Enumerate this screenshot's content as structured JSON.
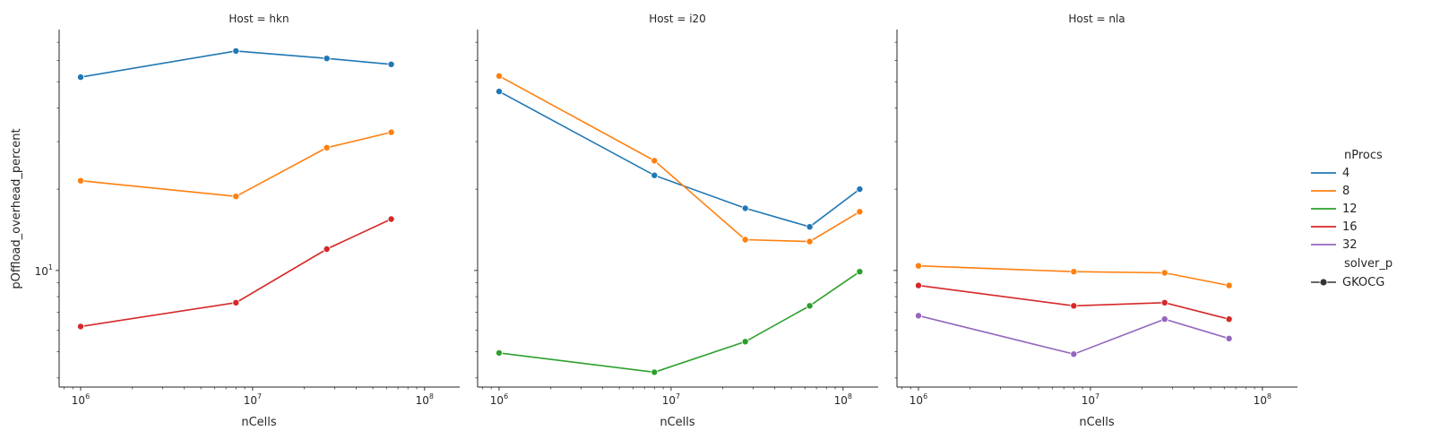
{
  "figure": {
    "ylabel": "pOffload_overhead_percent",
    "legend": {
      "title": "nProcs",
      "entries": [
        {
          "label": "4",
          "color": "#1f77b4"
        },
        {
          "label": "8",
          "color": "#ff7f0e"
        },
        {
          "label": "12",
          "color": "#2ca02c"
        },
        {
          "label": "16",
          "color": "#d62728"
        },
        {
          "label": "32",
          "color": "#9467bd"
        }
      ],
      "style_title": "solver_p",
      "style_entry": "GKOCG"
    }
  },
  "chart_data": [
    {
      "type": "line",
      "title": "Host = hkn",
      "xlabel": "nCells",
      "xscale": "log",
      "yscale": "log",
      "xlim": [
        750000,
        160000000
      ],
      "ylim": [
        3.7,
        78
      ],
      "xticks": [
        {
          "v": 1000000,
          "b": "10",
          "e": "6"
        },
        {
          "v": 10000000,
          "b": "10",
          "e": "7"
        },
        {
          "v": 100000000,
          "b": "10",
          "e": "8"
        }
      ],
      "yticks": [
        {
          "v": 10,
          "b": "10",
          "e": "1"
        }
      ],
      "series": [
        {
          "name": "4",
          "color": "#1f77b4",
          "x": [
            1000000,
            8000000,
            27000000,
            64000000
          ],
          "y": [
            52.0,
            65.0,
            61.0,
            58.0
          ]
        },
        {
          "name": "8",
          "color": "#ff7f0e",
          "x": [
            1000000,
            8000000,
            27000000,
            64000000
          ],
          "y": [
            21.5,
            18.8,
            28.5,
            32.5
          ]
        },
        {
          "name": "16",
          "color": "#d62728",
          "x": [
            1000000,
            8000000,
            27000000,
            64000000
          ],
          "y": [
            6.2,
            7.6,
            12.0,
            15.5
          ]
        }
      ]
    },
    {
      "type": "line",
      "title": "Host = i20",
      "xlabel": "nCells",
      "xscale": "log",
      "yscale": "log",
      "xlim": [
        750000,
        160000000
      ],
      "ylim": [
        3.7,
        78
      ],
      "xticks": [
        {
          "v": 1000000,
          "b": "10",
          "e": "6"
        },
        {
          "v": 10000000,
          "b": "10",
          "e": "7"
        },
        {
          "v": 100000000,
          "b": "10",
          "e": "8"
        }
      ],
      "yticks": [
        {
          "v": 10,
          "b": "10",
          "e": "1"
        }
      ],
      "series": [
        {
          "name": "4",
          "color": "#1f77b4",
          "x": [
            1000000,
            8000000,
            27000000,
            64000000,
            125000000
          ],
          "y": [
            46.0,
            22.5,
            17.0,
            14.5,
            20.0
          ]
        },
        {
          "name": "8",
          "color": "#ff7f0e",
          "x": [
            1000000,
            8000000,
            27000000,
            64000000,
            125000000
          ],
          "y": [
            52.5,
            25.5,
            13.0,
            12.8,
            16.5
          ]
        },
        {
          "name": "12",
          "color": "#2ca02c",
          "x": [
            1000000,
            8000000,
            27000000,
            64000000,
            125000000
          ],
          "y": [
            4.95,
            4.2,
            5.45,
            7.4,
            9.9
          ]
        }
      ]
    },
    {
      "type": "line",
      "title": "Host = nla",
      "xlabel": "nCells",
      "xscale": "log",
      "yscale": "log",
      "xlim": [
        750000,
        160000000
      ],
      "ylim": [
        3.7,
        78
      ],
      "xticks": [
        {
          "v": 1000000,
          "b": "10",
          "e": "6"
        },
        {
          "v": 10000000,
          "b": "10",
          "e": "7"
        },
        {
          "v": 100000000,
          "b": "10",
          "e": "8"
        }
      ],
      "yticks": [
        {
          "v": 10,
          "b": "10",
          "e": "1"
        }
      ],
      "series": [
        {
          "name": "8",
          "color": "#ff7f0e",
          "x": [
            1000000,
            8000000,
            27000000,
            64000000
          ],
          "y": [
            10.4,
            9.9,
            9.8,
            8.8
          ]
        },
        {
          "name": "16",
          "color": "#d62728",
          "x": [
            1000000,
            8000000,
            27000000,
            64000000
          ],
          "y": [
            8.8,
            7.4,
            7.6,
            6.6
          ]
        },
        {
          "name": "32",
          "color": "#9467bd",
          "x": [
            1000000,
            8000000,
            27000000,
            64000000
          ],
          "y": [
            6.8,
            4.9,
            6.6,
            5.6
          ]
        }
      ]
    }
  ]
}
